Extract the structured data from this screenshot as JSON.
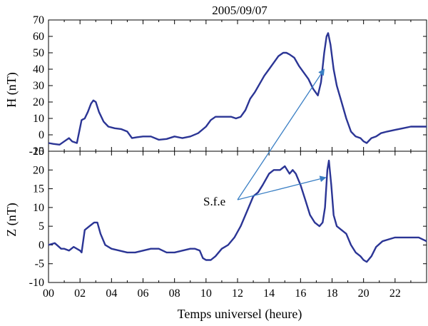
{
  "colors": {
    "series": "#2b3595",
    "arrow": "#3a7fc4",
    "frame": "#000000"
  },
  "chart_data": [
    {
      "type": "line",
      "panel": "top",
      "title": "2005/09/07",
      "ylabel": "H (nT)",
      "xlabel": "",
      "xlim": [
        0,
        24
      ],
      "ylim": [
        -10,
        70
      ],
      "yticks": [
        -10,
        0,
        10,
        20,
        30,
        40,
        50,
        60,
        70
      ],
      "xticks": [
        0,
        2,
        4,
        6,
        8,
        10,
        12,
        14,
        16,
        18,
        20,
        22
      ],
      "series": [
        {
          "x": [
            0,
            0.3,
            0.7,
            1.0,
            1.3,
            1.5,
            1.8,
            2.1,
            2.3,
            2.5,
            2.7,
            2.85,
            3.0,
            3.2,
            3.5,
            3.8,
            4.2,
            4.6,
            5.0,
            5.3,
            5.6,
            6.0,
            6.5,
            7.0,
            7.5,
            8.0,
            8.5,
            9.0,
            9.5,
            10.0,
            10.3,
            10.6,
            11.0,
            11.3,
            11.6,
            11.9,
            12.2,
            12.5,
            12.8,
            13.1,
            13.4,
            13.7,
            14.0,
            14.3,
            14.6,
            14.9,
            15.1,
            15.3,
            15.6,
            15.9,
            16.2,
            16.5,
            16.8,
            17.1,
            17.3,
            17.5,
            17.65,
            17.75,
            17.9,
            18.1,
            18.3,
            18.6,
            18.9,
            19.2,
            19.5,
            19.8,
            20.0,
            20.2,
            20.5,
            20.8,
            21.1,
            21.5,
            22.0,
            22.5,
            23.0,
            23.5,
            24.0
          ],
          "values": [
            -5,
            -5.5,
            -6,
            -4,
            -2,
            -4,
            -5,
            9,
            10,
            14,
            19,
            21,
            20,
            14,
            8,
            5,
            4,
            3.5,
            2,
            -2,
            -1.5,
            -1,
            -1,
            -3,
            -2.5,
            -1,
            -2,
            -1,
            1,
            5,
            9,
            11,
            11,
            11,
            11,
            10,
            11,
            15,
            22,
            26,
            31,
            36,
            40,
            44,
            48,
            50,
            50,
            49,
            47,
            42,
            38,
            34,
            28,
            24,
            32,
            50,
            60,
            62,
            55,
            40,
            30,
            20,
            10,
            2,
            -1,
            -2,
            -4,
            -5,
            -2,
            -1,
            1,
            2,
            3,
            4,
            5,
            5,
            5
          ]
        }
      ]
    },
    {
      "type": "line",
      "panel": "bottom",
      "title": "",
      "ylabel": "Z (nT)",
      "xlabel": "Temps universel (heure)",
      "xlim": [
        0,
        24
      ],
      "ylim": [
        -10,
        25
      ],
      "yticks": [
        -10,
        -5,
        0,
        5,
        10,
        15,
        20,
        25
      ],
      "xticks": [
        0,
        2,
        4,
        6,
        8,
        10,
        12,
        14,
        16,
        18,
        20,
        22
      ],
      "xticklabels": [
        "00",
        "02",
        "04",
        "06",
        "08",
        "10",
        "12",
        "14",
        "16",
        "18",
        "20",
        "22"
      ],
      "series": [
        {
          "x": [
            0,
            0.4,
            0.8,
            1.0,
            1.3,
            1.6,
            2.0,
            2.1,
            2.3,
            2.6,
            2.9,
            3.1,
            3.3,
            3.6,
            4.0,
            4.5,
            5.0,
            5.5,
            6.0,
            6.5,
            7.0,
            7.5,
            8.0,
            8.5,
            9.0,
            9.3,
            9.6,
            9.8,
            10.0,
            10.3,
            10.6,
            11.0,
            11.4,
            11.8,
            12.2,
            12.6,
            13.0,
            13.3,
            13.6,
            14.0,
            14.3,
            14.7,
            15.0,
            15.3,
            15.5,
            15.7,
            16.0,
            16.3,
            16.6,
            16.9,
            17.2,
            17.4,
            17.55,
            17.7,
            17.8,
            17.95,
            18.1,
            18.3,
            18.6,
            18.9,
            19.2,
            19.5,
            19.8,
            20.0,
            20.2,
            20.5,
            20.8,
            21.2,
            21.6,
            22.0,
            22.5,
            23.0,
            23.5,
            24.0
          ],
          "values": [
            0,
            0.5,
            -1,
            -1,
            -1.5,
            -0.5,
            -1.5,
            -2,
            4,
            5,
            6,
            6,
            3,
            0,
            -1,
            -1.5,
            -2,
            -2,
            -1.5,
            -1,
            -1,
            -2,
            -2,
            -1.5,
            -1,
            -1,
            -1.5,
            -3.5,
            -4,
            -4,
            -3,
            -1,
            0,
            2,
            5,
            9,
            13,
            14,
            16,
            19,
            20,
            20,
            21,
            19,
            20,
            19,
            16,
            12,
            8,
            6,
            5,
            6,
            10,
            20,
            22.5,
            16,
            8,
            5,
            4,
            3,
            0,
            -2,
            -3,
            -4,
            -4.5,
            -3,
            -0.5,
            1,
            1.5,
            2,
            2,
            2,
            2,
            1
          ]
        }
      ]
    }
  ],
  "annotation": {
    "label": "S.f.e",
    "targets": [
      {
        "panel": "top",
        "x": 17.5,
        "y": 40
      },
      {
        "panel": "bottom",
        "x": 17.6,
        "y": 18
      }
    ]
  }
}
